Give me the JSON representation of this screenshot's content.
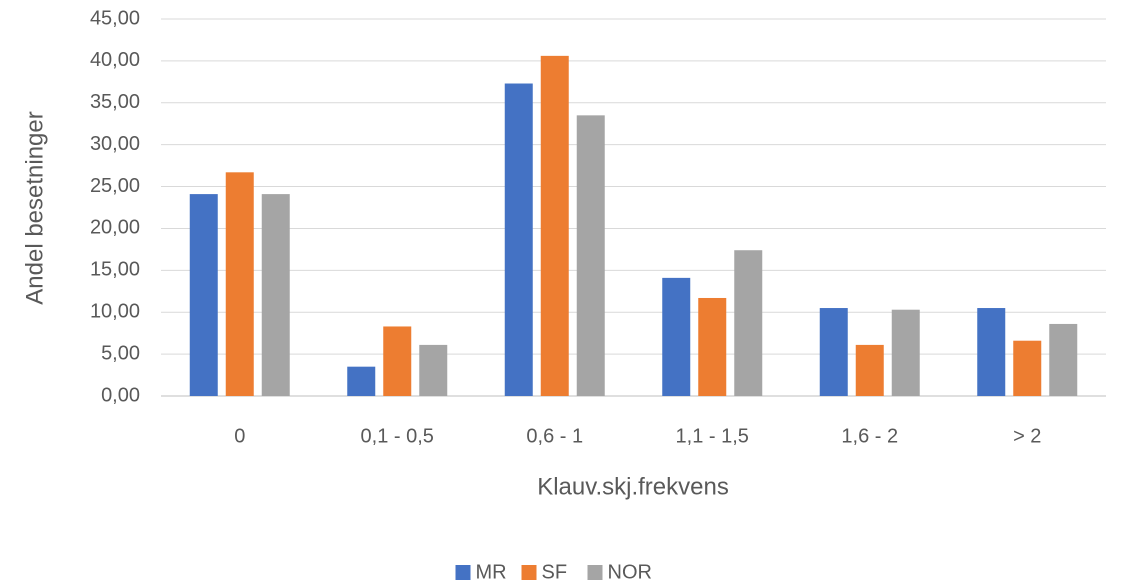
{
  "chart_data": {
    "type": "bar",
    "categories": [
      "0",
      "0,1 - 0,5",
      "0,6 - 1",
      "1,1 - 1,5",
      "1,6 - 2",
      "> 2"
    ],
    "series": [
      {
        "name": "MR",
        "color": "#4472c4",
        "values": [
          24.1,
          3.5,
          37.3,
          14.1,
          10.5,
          10.5
        ]
      },
      {
        "name": "SF",
        "color": "#ed7d31",
        "values": [
          26.7,
          8.3,
          40.6,
          11.7,
          6.1,
          6.6
        ]
      },
      {
        "name": "NOR",
        "color": "#a5a5a5",
        "values": [
          24.1,
          6.1,
          33.5,
          17.4,
          10.3,
          8.6
        ]
      }
    ],
    "x_label": "Klauv.skj.frekvens",
    "y_label": "Andel besetninger",
    "ylim": [
      0,
      45
    ],
    "yticks": [
      {
        "value": 0,
        "label": "0,00"
      },
      {
        "value": 5,
        "label": "5,00"
      },
      {
        "value": 10,
        "label": "10,00"
      },
      {
        "value": 15,
        "label": "15,00"
      },
      {
        "value": 20,
        "label": "20,00"
      },
      {
        "value": 25,
        "label": "25,00"
      },
      {
        "value": 30,
        "label": "30,00"
      },
      {
        "value": 35,
        "label": "35,00"
      },
      {
        "value": 40,
        "label": "40,00"
      },
      {
        "value": 45,
        "label": "45,00"
      }
    ],
    "grid": true,
    "legend": "bottom"
  }
}
